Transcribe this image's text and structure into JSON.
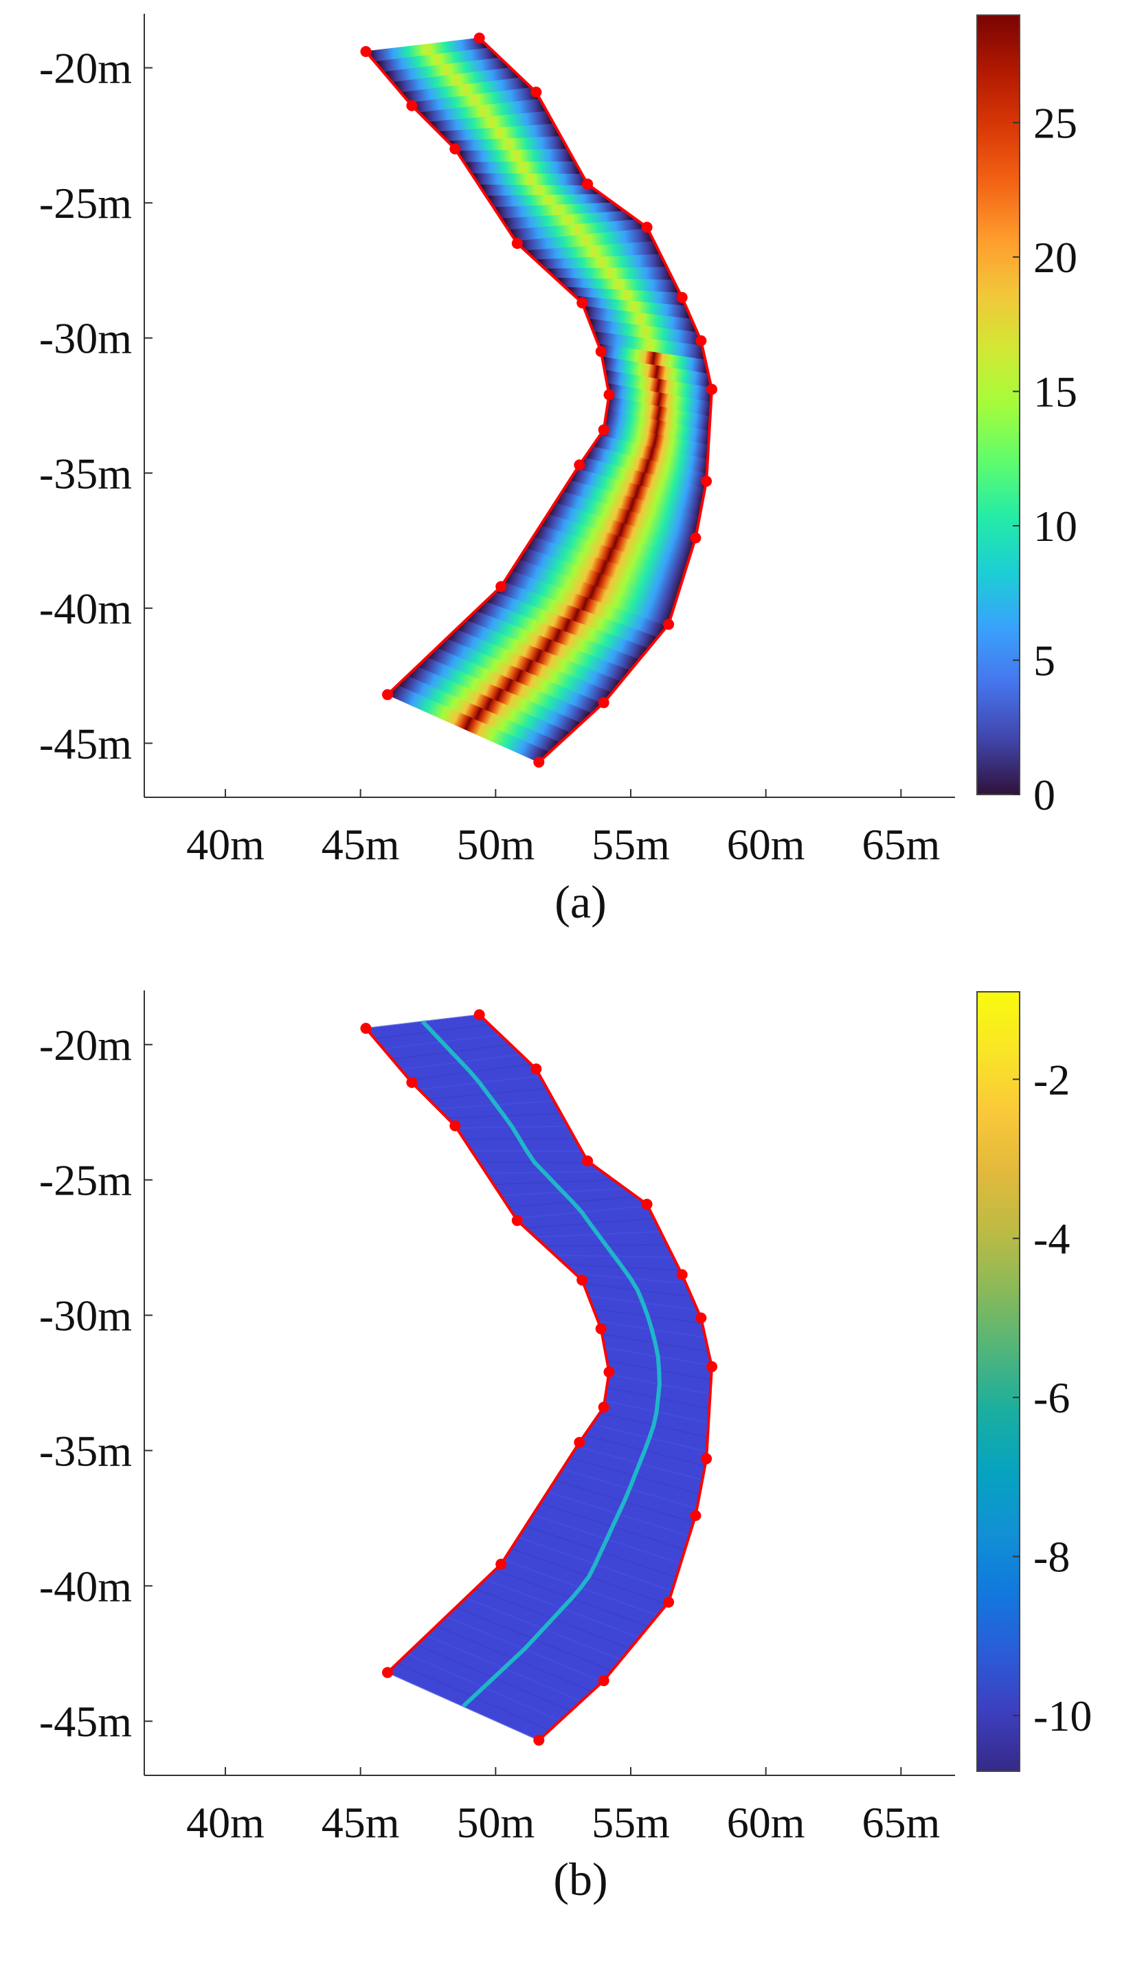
{
  "chart_data": [
    {
      "type": "heatmap",
      "caption": "(a)",
      "title": "",
      "xlabel": "",
      "ylabel": "",
      "xlim": [
        37,
        67
      ],
      "ylim": [
        -47,
        -18
      ],
      "xticks": [
        "40m",
        "45m",
        "50m",
        "55m",
        "60m",
        "65m"
      ],
      "xtick_values": [
        40,
        45,
        50,
        55,
        60,
        65
      ],
      "yticks": [
        "-20m",
        "-25m",
        "-30m",
        "-35m",
        "-40m",
        "-45m"
      ],
      "ytick_values": [
        -20,
        -25,
        -30,
        -35,
        -40,
        -45
      ],
      "colorbar": {
        "range": [
          0,
          29
        ],
        "ticks": [
          "0",
          "5",
          "10",
          "15",
          "20",
          "25"
        ],
        "tick_values": [
          0,
          5,
          10,
          15,
          20,
          25
        ],
        "colormap": "turbo"
      },
      "boundary_left": [
        [
          45.2,
          -19.4
        ],
        [
          46.9,
          -21.4
        ],
        [
          48.5,
          -23.0
        ],
        [
          50.8,
          -26.5
        ],
        [
          53.2,
          -28.7
        ],
        [
          53.9,
          -30.5
        ],
        [
          54.2,
          -32.1
        ],
        [
          54.0,
          -33.4
        ],
        [
          53.1,
          -34.7
        ],
        [
          50.2,
          -39.2
        ],
        [
          46.0,
          -43.2
        ]
      ],
      "boundary_right": [
        [
          49.4,
          -18.9
        ],
        [
          51.5,
          -20.9
        ],
        [
          53.4,
          -24.3
        ],
        [
          55.6,
          -25.9
        ],
        [
          56.9,
          -28.5
        ],
        [
          57.6,
          -30.1
        ],
        [
          58.0,
          -31.9
        ],
        [
          57.8,
          -35.3
        ],
        [
          57.4,
          -37.4
        ],
        [
          56.4,
          -40.6
        ],
        [
          54.0,
          -43.5
        ],
        [
          51.6,
          -45.7
        ]
      ],
      "field": "distance from boundary, maximum along centerline near (53.5, -39.5)"
    },
    {
      "type": "heatmap",
      "caption": "(b)",
      "title": "",
      "xlabel": "",
      "ylabel": "",
      "xlim": [
        37,
        67
      ],
      "ylim": [
        -47,
        -18
      ],
      "xticks": [
        "40m",
        "45m",
        "50m",
        "55m",
        "60m",
        "65m"
      ],
      "xtick_values": [
        40,
        45,
        50,
        55,
        60,
        65
      ],
      "yticks": [
        "-20m",
        "-25m",
        "-30m",
        "-35m",
        "-40m",
        "-45m"
      ],
      "ytick_values": [
        -20,
        -25,
        -30,
        -35,
        -40,
        -45
      ],
      "colorbar": {
        "range": [
          -10.7,
          -0.9
        ],
        "ticks": [
          "-2",
          "-4",
          "-6",
          "-8",
          "-10"
        ],
        "tick_values": [
          -2,
          -4,
          -6,
          -8,
          -10
        ],
        "colormap": "parula"
      },
      "boundary_left": [
        [
          45.2,
          -19.4
        ],
        [
          46.9,
          -21.4
        ],
        [
          48.5,
          -23.0
        ],
        [
          50.8,
          -26.5
        ],
        [
          53.2,
          -28.7
        ],
        [
          53.9,
          -30.5
        ],
        [
          54.2,
          -32.1
        ],
        [
          54.0,
          -33.4
        ],
        [
          53.1,
          -34.7
        ],
        [
          50.2,
          -39.2
        ],
        [
          46.0,
          -43.2
        ]
      ],
      "boundary_right": [
        [
          49.4,
          -18.9
        ],
        [
          51.5,
          -20.9
        ],
        [
          53.4,
          -24.3
        ],
        [
          55.6,
          -25.9
        ],
        [
          56.9,
          -28.5
        ],
        [
          57.6,
          -30.1
        ],
        [
          58.0,
          -31.9
        ],
        [
          57.8,
          -35.3
        ],
        [
          57.4,
          -37.4
        ],
        [
          56.4,
          -40.6
        ],
        [
          54.0,
          -43.5
        ],
        [
          51.6,
          -45.7
        ]
      ],
      "field": "nearly uniform about -10 with a ridge near -8 along the centerline"
    }
  ]
}
